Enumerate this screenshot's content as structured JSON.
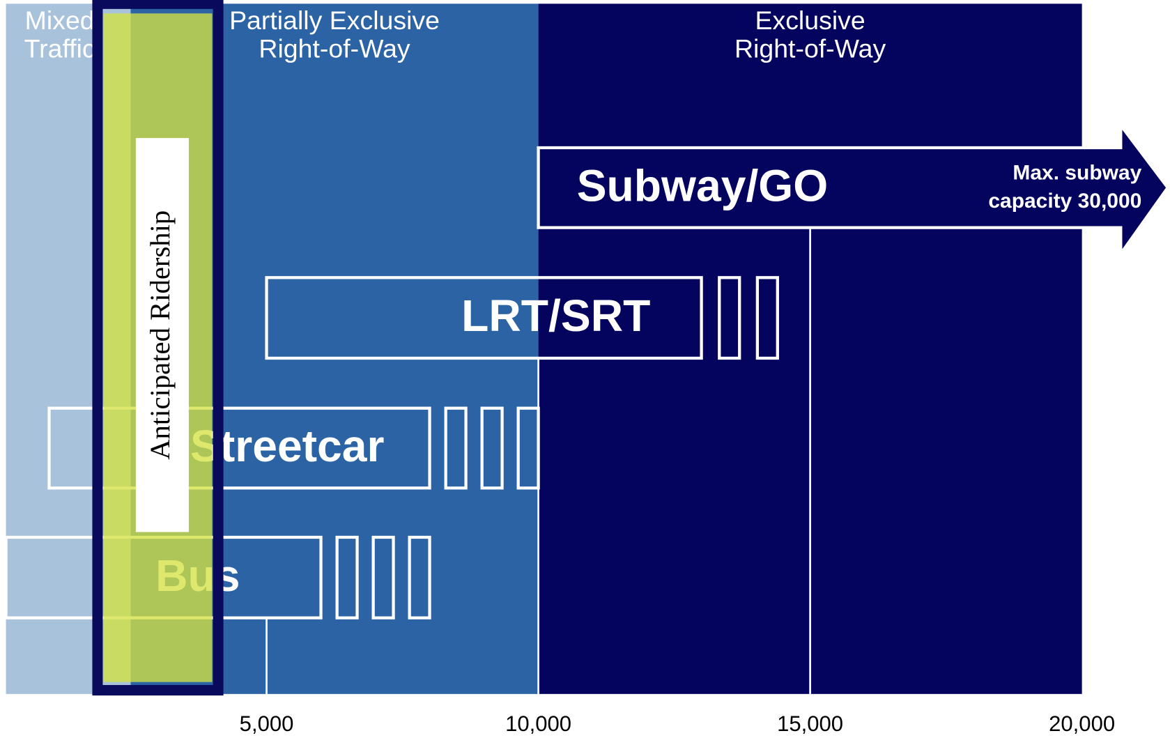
{
  "chart_data": {
    "type": "capacity-range",
    "xlim": [
      0,
      20000
    ],
    "xticks": [
      {
        "value": 5000,
        "label": "5,000"
      },
      {
        "value": 10000,
        "label": "10,000"
      },
      {
        "value": 15000,
        "label": "15,000"
      },
      {
        "value": 20000,
        "label": "20,000"
      }
    ],
    "zones": [
      {
        "label_lines": [
          "Mixed",
          "Traffic"
        ],
        "from": 0,
        "to": 2500,
        "color": "#a8c2dc"
      },
      {
        "label_lines": [
          "Partially Exclusive",
          "Right-of-Way"
        ],
        "from": 2500,
        "to": 10000,
        "color": "#2b63a4"
      },
      {
        "label_lines": [
          "Exclusive",
          "Right-of-Way"
        ],
        "from": 10000,
        "to": 20000,
        "color": "#04045f"
      }
    ],
    "modes": [
      {
        "name": "Subway/GO",
        "min": 10000,
        "max": 30000,
        "annotation_lines": [
          "Max. subway",
          "capacity 30,000"
        ]
      },
      {
        "name": "LRT/SRT",
        "min": 5000,
        "max": 13000,
        "extension_max": 14400
      },
      {
        "name": "Streetcar",
        "min": 1000,
        "max": 8000,
        "extension_max": 10000
      },
      {
        "name": "Bus",
        "min": 0,
        "max": 6000,
        "extension_max": 8000
      }
    ],
    "highlight": {
      "label": "Anticipated Ridership",
      "from": 2000,
      "to": 4000,
      "color": "#d4e243"
    }
  }
}
